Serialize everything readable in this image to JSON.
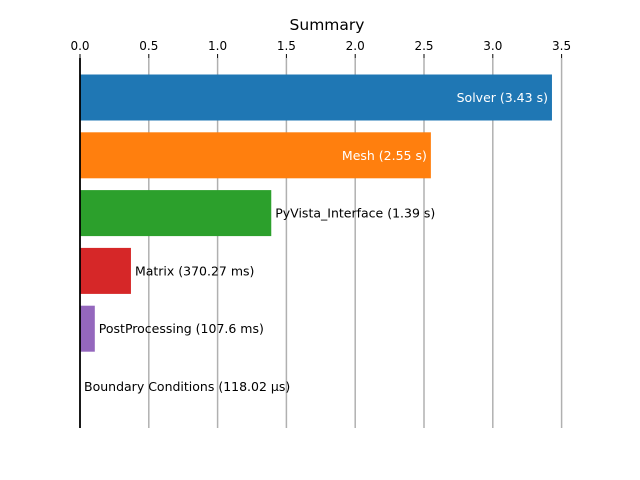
{
  "chart_data": {
    "type": "bar",
    "orientation": "horizontal",
    "title": "Summary",
    "xlabel": "",
    "ylabel": "",
    "xlim": [
      0,
      3.6
    ],
    "x_ticks": [
      0.0,
      0.5,
      1.0,
      1.5,
      2.0,
      2.5,
      3.0,
      3.5
    ],
    "x_tick_labels": [
      "0.0",
      "0.5",
      "1.0",
      "1.5",
      "2.0",
      "2.5",
      "3.0",
      "3.5"
    ],
    "x_axis_position": "top",
    "grid": "vertical",
    "categories": [
      "Solver",
      "Mesh",
      "PyVista_Interface",
      "Matrix",
      "PostProcessing",
      "Boundary Conditions"
    ],
    "values": [
      3.43,
      2.55,
      1.39,
      0.37027,
      0.1076,
      0.00011802
    ],
    "labels": [
      "Solver (3.43 s)",
      "Mesh (2.55 s)",
      "PyVista_Interface (1.39 s)",
      "Matrix (370.27 ms)",
      "PostProcessing (107.6 ms)",
      "Boundary Conditions (118.02 μs)"
    ],
    "label_position": [
      "inside",
      "inside",
      "outside",
      "outside",
      "outside",
      "outside"
    ],
    "colors": [
      "#1f77b4",
      "#ff7f0e",
      "#2ca02c",
      "#d62728",
      "#9467bd",
      "#8c564b"
    ]
  }
}
